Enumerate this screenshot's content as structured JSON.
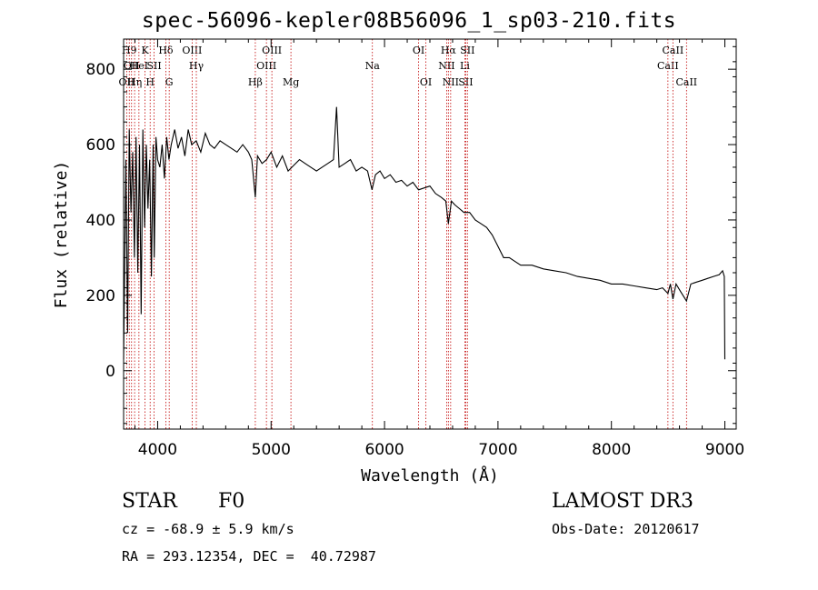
{
  "chart_data": {
    "type": "line",
    "title": "spec-56096-kepler08B56096_1_sp03-210.fits",
    "xlabel": "Wavelength (Å)",
    "ylabel": "Flux (relative)",
    "xlim": [
      3700,
      9100
    ],
    "ylim": [
      -155,
      880
    ],
    "xticks": [
      4000,
      5000,
      6000,
      7000,
      8000,
      9000
    ],
    "yticks": [
      0,
      200,
      400,
      600,
      800
    ],
    "series": [
      {
        "name": "flux",
        "x": [
          3700,
          3720,
          3735,
          3750,
          3765,
          3780,
          3795,
          3810,
          3825,
          3840,
          3855,
          3870,
          3885,
          3900,
          3915,
          3930,
          3945,
          3960,
          3970,
          3985,
          4000,
          4020,
          4040,
          4060,
          4080,
          4100,
          4120,
          4150,
          4180,
          4210,
          4240,
          4270,
          4300,
          4340,
          4380,
          4420,
          4460,
          4500,
          4550,
          4600,
          4650,
          4700,
          4750,
          4800,
          4830,
          4861,
          4880,
          4920,
          4960,
          5000,
          5050,
          5100,
          5150,
          5200,
          5250,
          5300,
          5350,
          5400,
          5450,
          5500,
          5550,
          5577,
          5600,
          5650,
          5700,
          5750,
          5800,
          5850,
          5890,
          5920,
          5960,
          6000,
          6050,
          6100,
          6150,
          6200,
          6250,
          6300,
          6350,
          6400,
          6450,
          6500,
          6540,
          6563,
          6590,
          6620,
          6660,
          6700,
          6750,
          6800,
          6850,
          6900,
          6950,
          7000,
          7050,
          7100,
          7150,
          7200,
          7300,
          7400,
          7500,
          7600,
          7700,
          7800,
          7900,
          8000,
          8100,
          8200,
          8300,
          8400,
          8450,
          8498,
          8520,
          8542,
          8570,
          8610,
          8662,
          8700,
          8750,
          8800,
          8850,
          8900,
          8950,
          8980,
          8995,
          9000
        ],
        "values": [
          30,
          560,
          100,
          640,
          420,
          580,
          300,
          620,
          260,
          600,
          150,
          640,
          380,
          600,
          430,
          560,
          250,
          600,
          300,
          620,
          560,
          540,
          600,
          510,
          620,
          560,
          600,
          640,
          590,
          620,
          570,
          640,
          600,
          610,
          580,
          630,
          600,
          590,
          610,
          600,
          590,
          580,
          600,
          580,
          560,
          460,
          570,
          550,
          560,
          580,
          540,
          570,
          530,
          545,
          560,
          550,
          540,
          530,
          540,
          550,
          560,
          700,
          540,
          550,
          560,
          530,
          540,
          530,
          480,
          520,
          530,
          510,
          520,
          500,
          505,
          490,
          500,
          480,
          485,
          490,
          470,
          460,
          450,
          390,
          450,
          440,
          430,
          420,
          420,
          400,
          390,
          380,
          360,
          330,
          300,
          300,
          290,
          280,
          280,
          270,
          265,
          260,
          250,
          245,
          240,
          230,
          230,
          225,
          220,
          215,
          220,
          205,
          230,
          190,
          230,
          210,
          185,
          230,
          235,
          240,
          245,
          250,
          255,
          265,
          250,
          30
        ]
      }
    ],
    "lines": [
      {
        "name": "OII",
        "wl": 3727,
        "row": 2
      },
      {
        "name": "H9",
        "wl": 3750,
        "row": 0
      },
      {
        "name": "OII",
        "wl": 3770,
        "row": 1
      },
      {
        "name": "Hη",
        "wl": 3797,
        "row": 2
      },
      {
        "name": "HeI",
        "wl": 3835,
        "row": 1
      },
      {
        "name": "K",
        "wl": 3889,
        "row": 0
      },
      {
        "name": "H",
        "wl": 3934,
        "row": 2
      },
      {
        "name": "SII",
        "wl": 3969,
        "row": 1
      },
      {
        "name": "Hδ",
        "wl": 4072,
        "row": 0
      },
      {
        "name": "G",
        "wl": 4102,
        "row": 2
      },
      {
        "name": "OIII",
        "wl": 4304,
        "row": 0
      },
      {
        "name": "Hγ",
        "wl": 4341,
        "row": 1
      },
      {
        "name": "Hβ",
        "wl": 4861,
        "row": 2
      },
      {
        "name": "OIII",
        "wl": 4959,
        "row": 1
      },
      {
        "name": "OIII",
        "wl": 5007,
        "row": 0
      },
      {
        "name": "Mg",
        "wl": 5175,
        "row": 2
      },
      {
        "name": "Na",
        "wl": 5893,
        "row": 1
      },
      {
        "name": "OI",
        "wl": 6300,
        "row": 0
      },
      {
        "name": "OI",
        "wl": 6364,
        "row": 2
      },
      {
        "name": "NII",
        "wl": 6548,
        "row": 1
      },
      {
        "name": "Hα",
        "wl": 6563,
        "row": 0
      },
      {
        "name": "NII",
        "wl": 6583,
        "row": 2
      },
      {
        "name": "SII",
        "wl": 6716,
        "row": 2
      },
      {
        "name": "Li",
        "wl": 6708,
        "row": 1
      },
      {
        "name": "SII",
        "wl": 6731,
        "row": 0
      },
      {
        "name": "CaII",
        "wl": 8498,
        "row": 1
      },
      {
        "name": "CaII",
        "wl": 8542,
        "row": 0
      },
      {
        "name": "CaII",
        "wl": 8662,
        "row": 2
      }
    ]
  },
  "info": {
    "class": "STAR",
    "subclass": "F0",
    "survey": "LAMOST DR3",
    "cz": "cz = -68.9 ± 5.9 km/s",
    "obsdate": "Obs-Date: 20120617",
    "radec": "RA = 293.12354, DEC =  40.72987"
  },
  "colors": {
    "axis": "#000000",
    "line": "#000000",
    "marker": "#c00000"
  }
}
